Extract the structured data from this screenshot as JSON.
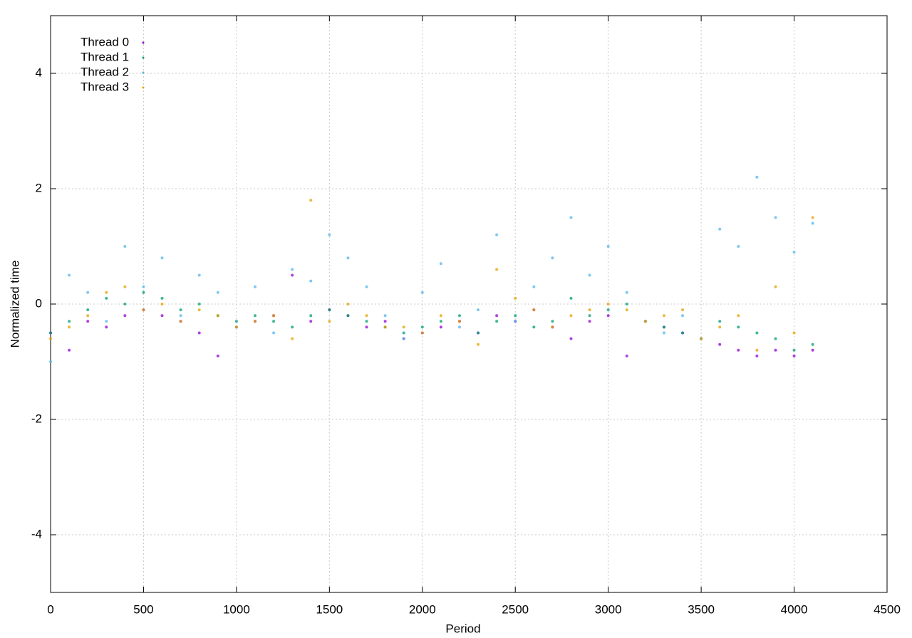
{
  "chart_data": {
    "type": "scatter",
    "xlabel": "Period",
    "ylabel": "Normalized time",
    "xlim": [
      0,
      4500
    ],
    "ylim": [
      -5,
      5
    ],
    "xticks": [
      0,
      500,
      1000,
      1500,
      2000,
      2500,
      3000,
      3500,
      4000,
      4500
    ],
    "yticks": [
      -4,
      -2,
      0,
      2,
      4
    ],
    "grid": true,
    "legend": "upper left",
    "x": [
      0,
      100,
      200,
      300,
      400,
      500,
      600,
      700,
      800,
      900,
      1000,
      1100,
      1200,
      1300,
      1400,
      1500,
      1600,
      1700,
      1800,
      1900,
      2000,
      2100,
      2200,
      2300,
      2400,
      2500,
      2600,
      2700,
      2800,
      2900,
      3000,
      3100,
      3200,
      3300,
      3400,
      3500,
      3600,
      3700,
      3800,
      3900,
      4000,
      4100
    ],
    "series": [
      {
        "name": "Thread 0",
        "color": "#9400d3",
        "values": [
          -0.5,
          -0.8,
          -0.3,
          -0.4,
          -0.2,
          -0.1,
          -0.2,
          -0.3,
          -0.5,
          -0.9,
          -0.4,
          -0.3,
          -0.2,
          0.5,
          -0.3,
          -0.1,
          -0.2,
          -0.4,
          -0.3,
          -0.6,
          -0.5,
          -0.4,
          -0.3,
          -0.5,
          -0.2,
          -0.3,
          -0.1,
          -0.4,
          -0.6,
          -0.3,
          -0.2,
          -0.9,
          -0.3,
          -0.4,
          -0.5,
          -0.6,
          -0.7,
          -0.8,
          -0.9,
          -0.8,
          -0.9,
          -0.8
        ]
      },
      {
        "name": "Thread 1",
        "color": "#009e73",
        "values": [
          -0.5,
          -0.3,
          -0.1,
          0.1,
          0.0,
          0.2,
          0.1,
          -0.1,
          0.0,
          -0.2,
          -0.3,
          -0.2,
          -0.3,
          -0.4,
          -0.2,
          -0.1,
          -0.2,
          -0.3,
          -0.4,
          -0.5,
          -0.4,
          -0.3,
          -0.2,
          -0.5,
          -0.3,
          -0.2,
          -0.4,
          -0.3,
          0.1,
          -0.2,
          -0.1,
          0.0,
          -0.3,
          -0.4,
          -0.5,
          -0.6,
          -0.3,
          -0.4,
          -0.5,
          -0.6,
          -0.8,
          -0.7
        ]
      },
      {
        "name": "Thread 2",
        "color": "#56b4e9",
        "values": [
          -1.0,
          0.5,
          0.2,
          -0.3,
          1.0,
          0.3,
          0.8,
          -0.2,
          0.5,
          0.2,
          -0.4,
          0.3,
          -0.5,
          0.6,
          0.4,
          1.2,
          0.8,
          0.3,
          -0.2,
          -0.6,
          0.2,
          0.7,
          -0.4,
          -0.1,
          1.2,
          -0.3,
          0.3,
          0.8,
          1.5,
          0.5,
          1.0,
          0.2,
          -0.3,
          -0.5,
          -0.2,
          -0.6,
          1.3,
          1.0,
          2.2,
          1.5,
          0.9,
          1.4
        ]
      },
      {
        "name": "Thread 3",
        "color": "#e69f00",
        "values": [
          -0.6,
          -0.4,
          -0.2,
          0.2,
          0.3,
          -0.1,
          0.0,
          -0.3,
          -0.1,
          -0.2,
          -0.4,
          -0.3,
          -0.2,
          -0.6,
          1.8,
          -0.3,
          0.0,
          -0.2,
          -0.4,
          -0.4,
          -0.5,
          -0.2,
          -0.3,
          -0.7,
          0.6,
          0.1,
          -0.1,
          -0.4,
          -0.2,
          -0.1,
          0.0,
          -0.1,
          -0.3,
          -0.2,
          -0.1,
          -0.6,
          -0.4,
          -0.2,
          -0.8,
          0.3,
          -0.5,
          1.5
        ]
      }
    ]
  }
}
